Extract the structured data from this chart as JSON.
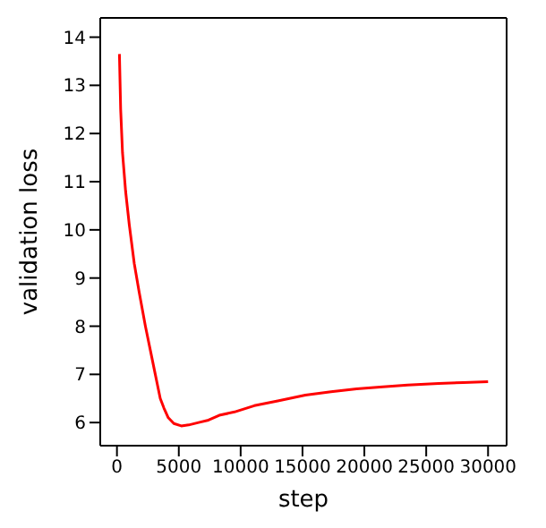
{
  "chart_data": {
    "type": "line",
    "xlabel": "step",
    "ylabel": "validation loss",
    "x": [
      200,
      300,
      450,
      700,
      1000,
      1400,
      1800,
      2300,
      2700,
      3100,
      3500,
      3800,
      4150,
      4600,
      5200,
      5800,
      6600,
      7400,
      8270,
      9500,
      11100,
      13000,
      15230,
      17300,
      19380,
      21500,
      23500,
      26000,
      28000,
      30000
    ],
    "series": [
      {
        "color": "#ff0000",
        "values": [
          13.65,
          12.5,
          11.6,
          10.8,
          10.1,
          9.3,
          8.7,
          8.0,
          7.5,
          7.0,
          6.5,
          6.3,
          6.1,
          5.98,
          5.93,
          5.95,
          6.0,
          6.05,
          6.15,
          6.22,
          6.35,
          6.45,
          6.57,
          6.64,
          6.7,
          6.74,
          6.78,
          6.81,
          6.83,
          6.85
        ]
      }
    ],
    "xlim": [
      -1350,
      31500
    ],
    "ylim": [
      5.52,
      14.4
    ],
    "xticks": [
      0,
      5000,
      10000,
      15000,
      20000,
      25000,
      30000
    ],
    "yticks": [
      6,
      7,
      8,
      9,
      10,
      11,
      12,
      13,
      14
    ],
    "grid": false,
    "legend": false,
    "marker": "none",
    "line_style": "solid"
  }
}
